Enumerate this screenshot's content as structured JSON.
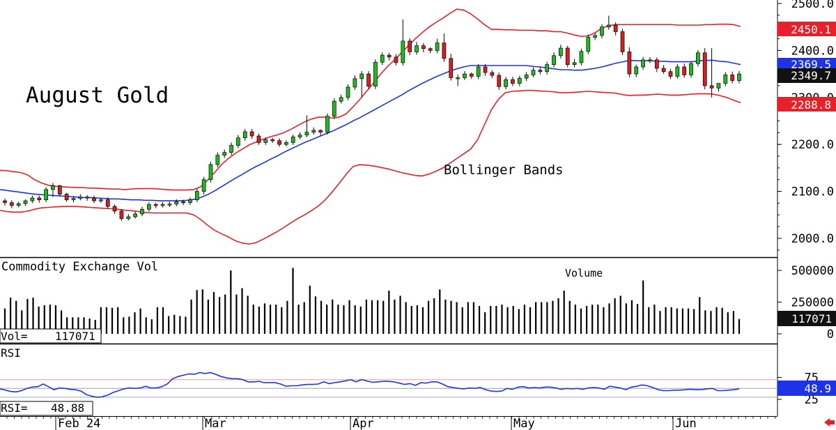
{
  "chart_data": [
    {
      "type": "candlestick",
      "title": "August Gold",
      "annotation": "Bollinger Bands",
      "ylim": [
        1960,
        2505
      ],
      "y_ticks": [
        "2500.0",
        "2400.0",
        "2300.0",
        "2200.0",
        "2100.0",
        "2000.0"
      ],
      "y_tick_values": [
        2500,
        2400,
        2300,
        2200,
        2100,
        2000
      ],
      "markers": {
        "upper_band": {
          "label": "2450.1",
          "value": 2450.1,
          "color": "#e8202a"
        },
        "middle_band": {
          "label": "2369.5",
          "value": 2369.5,
          "color": "#1e32e6"
        },
        "last_price": {
          "label": "2349.7",
          "value": 2349.7,
          "color": "#111111"
        },
        "lower_band": {
          "label": "2288.8",
          "value": 2288.8,
          "color": "#e8202a"
        }
      },
      "colors": {
        "up": "#22b822",
        "down": "#d42020",
        "upper_band": "#e8202a",
        "lower_band": "#e8202a",
        "middle_band": "#1e32e6"
      },
      "series": [
        {
          "name": "Open",
          "values": [
            2080,
            2076,
            2070,
            2074,
            2080,
            2086,
            2082,
            2104,
            2112,
            2094,
            2082,
            2085,
            2088,
            2086,
            2080,
            2082,
            2068,
            2058,
            2042,
            2046,
            2052,
            2062,
            2072,
            2070,
            2072,
            2073,
            2078,
            2076,
            2082,
            2100,
            2125,
            2157,
            2177,
            2183,
            2198,
            2214,
            2227,
            2218,
            2204,
            2210,
            2208,
            2200,
            2204,
            2216,
            2220,
            2226,
            2230,
            2226,
            2260,
            2292,
            2300,
            2322,
            2340,
            2350,
            2324,
            2375,
            2390,
            2386,
            2374,
            2420,
            2397,
            2410,
            2404,
            2400,
            2416,
            2383,
            2342,
            2342,
            2350,
            2345,
            2365,
            2353,
            2347,
            2323,
            2338,
            2330,
            2341,
            2348,
            2358,
            2355,
            2370,
            2389,
            2405,
            2370,
            2374,
            2398,
            2428,
            2432,
            2450,
            2454,
            2440,
            2397,
            2350,
            2365,
            2380,
            2380,
            2362,
            2355,
            2345,
            2365,
            2348,
            2372,
            2395,
            2325,
            2320,
            2330,
            2348,
            2336
          ],
          "_n": "time series, one per trading day, ~Feb 12 – Jun 12"
        },
        {
          "name": "Close",
          "values": [
            2076,
            2070,
            2074,
            2080,
            2086,
            2082,
            2104,
            2112,
            2094,
            2082,
            2085,
            2088,
            2086,
            2080,
            2082,
            2068,
            2058,
            2042,
            2046,
            2052,
            2062,
            2072,
            2070,
            2072,
            2073,
            2078,
            2076,
            2082,
            2100,
            2125,
            2157,
            2177,
            2183,
            2198,
            2214,
            2227,
            2218,
            2204,
            2210,
            2208,
            2200,
            2204,
            2216,
            2220,
            2226,
            2230,
            2226,
            2260,
            2292,
            2300,
            2322,
            2340,
            2350,
            2324,
            2375,
            2390,
            2386,
            2374,
            2420,
            2397,
            2410,
            2404,
            2400,
            2416,
            2383,
            2342,
            2342,
            2350,
            2345,
            2365,
            2353,
            2347,
            2323,
            2338,
            2330,
            2341,
            2348,
            2358,
            2355,
            2370,
            2389,
            2405,
            2370,
            2374,
            2398,
            2428,
            2432,
            2450,
            2454,
            2440,
            2397,
            2350,
            2365,
            2380,
            2380,
            2362,
            2355,
            2345,
            2365,
            2348,
            2372,
            2395,
            2325,
            2320,
            2330,
            2348,
            2336,
            2350
          ]
        },
        {
          "name": "High",
          "values": [
            2085,
            2081,
            2078,
            2083,
            2091,
            2091,
            2109,
            2118,
            2114,
            2097,
            2090,
            2094,
            2092,
            2091,
            2086,
            2087,
            2072,
            2062,
            2052,
            2057,
            2067,
            2077,
            2076,
            2077,
            2078,
            2083,
            2082,
            2087,
            2106,
            2131,
            2163,
            2183,
            2189,
            2204,
            2220,
            2233,
            2233,
            2223,
            2215,
            2214,
            2213,
            2209,
            2221,
            2226,
            2262,
            2236,
            2232,
            2266,
            2298,
            2306,
            2328,
            2347,
            2356,
            2356,
            2381,
            2396,
            2395,
            2392,
            2466,
            2426,
            2418,
            2416,
            2407,
            2425,
            2436,
            2393,
            2349,
            2356,
            2353,
            2371,
            2371,
            2358,
            2353,
            2344,
            2344,
            2346,
            2354,
            2364,
            2364,
            2376,
            2396,
            2412,
            2410,
            2382,
            2404,
            2434,
            2438,
            2456,
            2474,
            2460,
            2446,
            2407,
            2370,
            2386,
            2386,
            2385,
            2369,
            2361,
            2371,
            2372,
            2377,
            2401,
            2405,
            2405,
            2327,
            2354,
            2355,
            2356
          ]
        },
        {
          "name": "Low",
          "values": [
            2070,
            2064,
            2066,
            2069,
            2075,
            2076,
            2077,
            2088,
            2090,
            2078,
            2077,
            2081,
            2080,
            2075,
            2076,
            2063,
            2052,
            2037,
            2038,
            2042,
            2047,
            2057,
            2064,
            2066,
            2067,
            2068,
            2071,
            2071,
            2077,
            2093,
            2119,
            2151,
            2171,
            2177,
            2192,
            2208,
            2212,
            2199,
            2199,
            2203,
            2195,
            2196,
            2199,
            2211,
            2215,
            2221,
            2219,
            2221,
            2254,
            2287,
            2294,
            2316,
            2301,
            2318,
            2318,
            2369,
            2379,
            2368,
            2368,
            2390,
            2391,
            2396,
            2394,
            2394,
            2376,
            2336,
            2324,
            2337,
            2339,
            2339,
            2346,
            2341,
            2316,
            2317,
            2324,
            2324,
            2335,
            2343,
            2349,
            2349,
            2364,
            2383,
            2364,
            2364,
            2368,
            2392,
            2422,
            2426,
            2444,
            2432,
            2390,
            2343,
            2343,
            2359,
            2373,
            2354,
            2350,
            2339,
            2340,
            2342,
            2342,
            2366,
            2317,
            2300,
            2312,
            2324,
            2330,
            2330
          ]
        }
      ],
      "bands": {
        "upper": [
          2145,
          2144,
          2142,
          2140,
          2135,
          2125,
          2118,
          2113,
          2111,
          2110,
          2109,
          2108,
          2108,
          2107,
          2107,
          2106,
          2105,
          2105,
          2104,
          2105,
          2106,
          2106,
          2106,
          2105,
          2104,
          2103,
          2103,
          2103,
          2104,
          2110,
          2124,
          2140,
          2157,
          2170,
          2181,
          2190,
          2199,
          2205,
          2211,
          2216,
          2220,
          2225,
          2232,
          2240,
          2248,
          2254,
          2258,
          2258,
          2256,
          2258,
          2265,
          2280,
          2296,
          2314,
          2331,
          2350,
          2366,
          2380,
          2395,
          2410,
          2425,
          2438,
          2450,
          2460,
          2469,
          2479,
          2488,
          2486,
          2478,
          2467,
          2455,
          2445,
          2445,
          2444,
          2444,
          2443,
          2443,
          2443,
          2442,
          2442,
          2440,
          2440,
          2437,
          2433,
          2430,
          2431,
          2438,
          2448,
          2453,
          2455,
          2455,
          2455,
          2455,
          2455,
          2455,
          2455,
          2455,
          2455,
          2454,
          2454,
          2454,
          2454,
          2455,
          2455,
          2456,
          2456,
          2455,
          2451
        ],
        "middle": [
          2104,
          2102,
          2100,
          2098,
          2096,
          2094,
          2093,
          2092,
          2091,
          2090,
          2089,
          2088,
          2087,
          2087,
          2086,
          2085,
          2084,
          2084,
          2083,
          2082,
          2082,
          2081,
          2081,
          2080,
          2080,
          2080,
          2080,
          2081,
          2083,
          2087,
          2093,
          2101,
          2110,
          2119,
          2128,
          2136,
          2145,
          2153,
          2160,
          2168,
          2175,
          2183,
          2190,
          2197,
          2204,
          2210,
          2216,
          2222,
          2228,
          2235,
          2242,
          2250,
          2257,
          2265,
          2273,
          2281,
          2289,
          2297,
          2305,
          2314,
          2322,
          2330,
          2337,
          2344,
          2350,
          2356,
          2361,
          2365,
          2368,
          2368,
          2368,
          2368,
          2368,
          2368,
          2368,
          2368,
          2368,
          2366,
          2365,
          2363,
          2361,
          2359,
          2359,
          2358,
          2358,
          2360,
          2362,
          2365,
          2369,
          2373,
          2376,
          2379,
          2378,
          2378,
          2378,
          2377,
          2377,
          2376,
          2376,
          2376,
          2376,
          2378,
          2379,
          2379,
          2377,
          2376,
          2373,
          2370
        ],
        "lower": [
          2060,
          2057,
          2056,
          2056,
          2058,
          2062,
          2065,
          2066,
          2067,
          2068,
          2068,
          2068,
          2067,
          2066,
          2065,
          2064,
          2063,
          2062,
          2060,
          2059,
          2057,
          2055,
          2054,
          2054,
          2054,
          2054,
          2054,
          2054,
          2050,
          2040,
          2028,
          2017,
          2010,
          2003,
          1995,
          1990,
          1988,
          1991,
          1998,
          2006,
          2014,
          2023,
          2033,
          2042,
          2050,
          2059,
          2069,
          2082,
          2099,
          2117,
          2136,
          2153,
          2157,
          2156,
          2154,
          2151,
          2148,
          2144,
          2140,
          2137,
          2134,
          2133,
          2137,
          2143,
          2150,
          2160,
          2170,
          2180,
          2190,
          2210,
          2242,
          2274,
          2296,
          2310,
          2313,
          2314,
          2315,
          2315,
          2314,
          2313,
          2312,
          2310,
          2310,
          2311,
          2312,
          2313,
          2312,
          2311,
          2310,
          2309,
          2306,
          2304,
          2305,
          2305,
          2306,
          2307,
          2306,
          2305,
          2305,
          2306,
          2307,
          2308,
          2308,
          2307,
          2304,
          2300,
          2294,
          2289
        ]
      }
    },
    {
      "type": "bar",
      "title": "Commodity Exchange Vol",
      "annotation": "Volume",
      "y_ticks": [
        "500000",
        "250000",
        "0"
      ],
      "y_tick_values": [
        500000,
        250000,
        0
      ],
      "ylim": [
        0,
        540000
      ],
      "readout_label": "Vol=",
      "readout_value": "117071",
      "last_label": "117071",
      "values": [
        200000,
        285000,
        260000,
        185000,
        275000,
        285000,
        215000,
        225000,
        230000,
        225000,
        185000,
        130000,
        130000,
        130000,
        130000,
        120000,
        110000,
        210000,
        210000,
        205000,
        210000,
        130000,
        135000,
        170000,
        200000,
        130000,
        115000,
        210000,
        210000,
        140000,
        150000,
        140000,
        135000,
        270000,
        345000,
        350000,
        270000,
        330000,
        290000,
        310000,
        500000,
        310000,
        360000,
        300000,
        230000,
        215000,
        240000,
        230000,
        230000,
        210000,
        260000,
        520000,
        230000,
        250000,
        380000,
        295000,
        260000,
        230000,
        270000,
        230000,
        225000,
        265000,
        225000,
        215000,
        270000,
        265000,
        265000,
        260000,
        340000,
        270000,
        300000,
        250000,
        220000,
        225000,
        210000,
        260000,
        280000,
        350000,
        270000,
        260000,
        250000,
        210000,
        250000,
        250000,
        220000,
        170000,
        220000,
        220000,
        230000,
        210000,
        220000,
        195000,
        230000,
        210000,
        250000,
        250000,
        250000,
        260000,
        280000,
        340000,
        260000,
        230000,
        200000,
        220000,
        230000,
        230000,
        210000,
        240000,
        280000,
        300000,
        240000,
        265000,
        235000,
        420000,
        210000,
        230000,
        180000,
        210000,
        210000,
        200000,
        200000,
        200000,
        195000,
        290000,
        185000,
        180000,
        210000,
        205000,
        170000,
        180000,
        117071
      ]
    },
    {
      "type": "line",
      "title": "RSI",
      "readout_label": "RSI=",
      "readout_value": "48.88",
      "last_label": "48.9",
      "y_ticks": [
        "75",
        "25"
      ],
      "y_tick_values": [
        75,
        25
      ],
      "ylim": [
        10,
        90
      ],
      "reference_lines": [
        70,
        50,
        30
      ],
      "values": [
        49,
        46,
        43,
        42,
        45,
        50,
        53,
        54,
        60,
        54,
        47,
        51,
        50,
        48,
        47,
        44,
        36,
        32,
        30,
        31,
        35,
        41,
        45,
        49,
        51,
        50,
        51,
        55,
        51,
        51,
        54,
        60,
        72,
        77,
        80,
        83,
        82,
        86,
        84,
        86,
        82,
        77,
        74,
        72,
        72,
        70,
        65,
        65,
        66,
        63,
        63,
        63,
        60,
        55,
        56,
        56,
        58,
        59,
        59,
        60,
        65,
        61,
        63,
        65,
        67,
        70,
        65,
        70,
        67,
        64,
        65,
        66,
        66,
        65,
        62,
        59,
        61,
        57,
        63,
        62,
        65,
        65,
        60,
        54,
        52,
        50,
        49,
        51,
        50,
        52,
        47,
        44,
        43,
        44,
        50,
        48,
        53,
        54,
        51,
        52,
        51,
        53,
        53,
        51,
        48,
        50,
        49,
        50,
        48,
        51,
        52,
        51,
        48,
        55,
        53,
        51,
        47,
        53,
        55,
        58,
        56,
        52,
        47,
        45,
        45,
        46,
        46,
        47,
        48,
        47,
        47,
        49,
        50,
        45,
        45,
        46,
        47,
        49
      ]
    }
  ],
  "x_axis": {
    "labels": [
      "Feb 24",
      "Mar",
      "Apr",
      "May",
      "Jun"
    ]
  }
}
